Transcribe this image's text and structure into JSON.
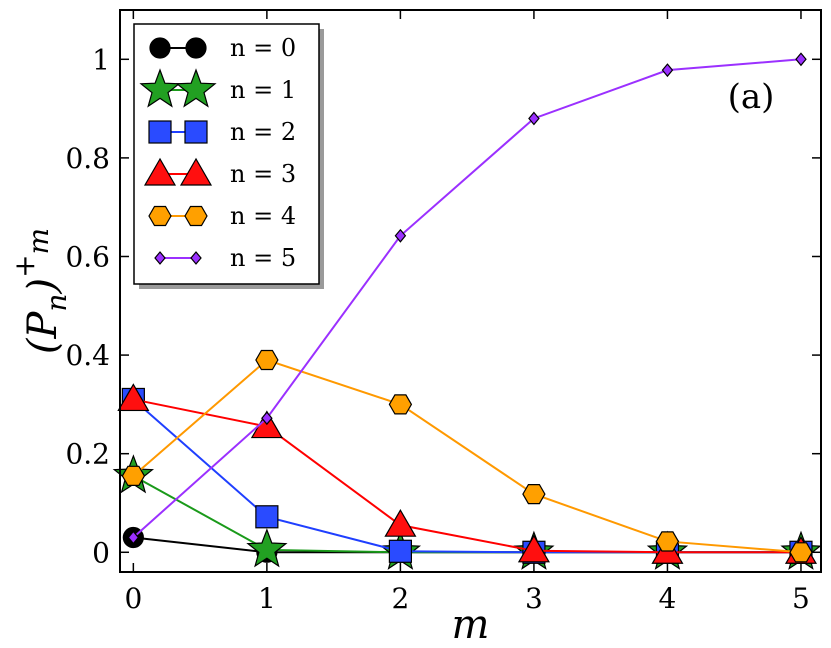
{
  "chart_data": {
    "type": "line",
    "title": "",
    "panel_label": "(a)",
    "xlabel": "m",
    "ylabel": "(P_n)^+_m",
    "xlim": [
      -0.1,
      5.15
    ],
    "ylim": [
      -0.04,
      1.1
    ],
    "x": [
      0,
      1,
      2,
      3,
      4,
      5
    ],
    "x_ticks": [
      "0",
      "1",
      "2",
      "3",
      "4",
      "5"
    ],
    "y_ticks": [
      {
        "value": 0,
        "label": "0"
      },
      {
        "value": 0.2,
        "label": "0.2"
      },
      {
        "value": 0.4,
        "label": "0.4"
      },
      {
        "value": 0.6,
        "label": "0.6"
      },
      {
        "value": 0.8,
        "label": "0.8"
      },
      {
        "value": 1,
        "label": "1"
      }
    ],
    "grid": false,
    "legend_position": "top-left",
    "series": [
      {
        "name": "n = 0",
        "marker": "circle",
        "color": "#000000",
        "fill": "#000000",
        "values": [
          0.03,
          0.0,
          0.0,
          0.0,
          0.0,
          0.0
        ]
      },
      {
        "name": "n = 1",
        "marker": "star",
        "color": "#1a9a1a",
        "fill": "#22a022",
        "values": [
          0.155,
          0.005,
          0.0,
          0.0,
          0.0,
          0.0
        ]
      },
      {
        "name": "n = 2",
        "marker": "square",
        "color": "#1f3fff",
        "fill": "#2a4bff",
        "values": [
          0.31,
          0.072,
          0.002,
          0.0,
          0.0,
          0.0
        ]
      },
      {
        "name": "n = 3",
        "marker": "triangle",
        "color": "#ff0000",
        "fill": "#ff0f0f",
        "values": [
          0.31,
          0.255,
          0.055,
          0.003,
          0.0,
          0.0
        ]
      },
      {
        "name": "n = 4",
        "marker": "hexagon",
        "color": "#ff9900",
        "fill": "#ffa000",
        "values": [
          0.155,
          0.39,
          0.3,
          0.118,
          0.022,
          0.0
        ]
      },
      {
        "name": "n = 5",
        "marker": "diamond",
        "color": "#9b30ff",
        "fill": "#9b30ff",
        "values": [
          0.03,
          0.272,
          0.642,
          0.88,
          0.978,
          1.0
        ]
      }
    ]
  }
}
